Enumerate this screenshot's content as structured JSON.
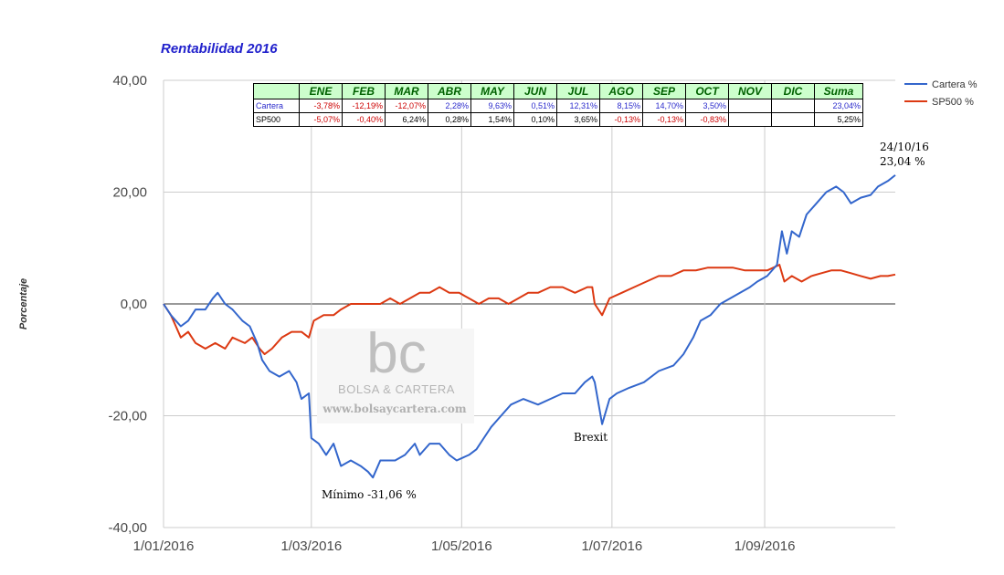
{
  "chart_data": {
    "type": "line",
    "title": "Rentabilidad 2016",
    "ylabel": "Porcentaje",
    "xlabel": "",
    "ylim": [
      -40,
      40
    ],
    "yticks": [
      "40,00",
      "20,00",
      "0,00",
      "-20,00",
      "-40,00"
    ],
    "xticks": [
      "1/01/2016",
      "1/03/2016",
      "1/05/2016",
      "1/07/2016",
      "1/09/2016"
    ],
    "legend_position": "top-right",
    "colors": {
      "cartera": "#3366cc",
      "sp500": "#dc3912"
    },
    "series": [
      {
        "name": "Cartera %",
        "points": [
          [
            "2016-01-01",
            0
          ],
          [
            "2016-01-04",
            -2
          ],
          [
            "2016-01-06",
            -3
          ],
          [
            "2016-01-08",
            -4
          ],
          [
            "2016-01-11",
            -3
          ],
          [
            "2016-01-14",
            -1
          ],
          [
            "2016-01-18",
            -1
          ],
          [
            "2016-01-21",
            1
          ],
          [
            "2016-01-23",
            2
          ],
          [
            "2016-01-26",
            0
          ],
          [
            "2016-01-29",
            -1
          ],
          [
            "2016-02-02",
            -3
          ],
          [
            "2016-02-05",
            -4
          ],
          [
            "2016-02-08",
            -7
          ],
          [
            "2016-02-10",
            -10
          ],
          [
            "2016-02-13",
            -12
          ],
          [
            "2016-02-17",
            -13
          ],
          [
            "2016-02-21",
            -12
          ],
          [
            "2016-02-24",
            -14
          ],
          [
            "2016-02-26",
            -17
          ],
          [
            "2016-02-29",
            -16
          ],
          [
            "2016-03-01",
            -24
          ],
          [
            "2016-03-04",
            -25
          ],
          [
            "2016-03-07",
            -27
          ],
          [
            "2016-03-10",
            -25
          ],
          [
            "2016-03-13",
            -29
          ],
          [
            "2016-03-17",
            -28
          ],
          [
            "2016-03-21",
            -29
          ],
          [
            "2016-03-24",
            -30
          ],
          [
            "2016-03-26",
            -31.06
          ],
          [
            "2016-03-29",
            -28
          ],
          [
            "2016-04-04",
            -28
          ],
          [
            "2016-04-08",
            -27
          ],
          [
            "2016-04-12",
            -25
          ],
          [
            "2016-04-14",
            -27
          ],
          [
            "2016-04-18",
            -25
          ],
          [
            "2016-04-22",
            -25
          ],
          [
            "2016-04-26",
            -27
          ],
          [
            "2016-04-29",
            -28
          ],
          [
            "2016-05-04",
            -27
          ],
          [
            "2016-05-07",
            -26
          ],
          [
            "2016-05-10",
            -24
          ],
          [
            "2016-05-13",
            -22
          ],
          [
            "2016-05-17",
            -20
          ],
          [
            "2016-05-21",
            -18
          ],
          [
            "2016-05-26",
            -17
          ],
          [
            "2016-06-01",
            -18
          ],
          [
            "2016-06-06",
            -17
          ],
          [
            "2016-06-11",
            -16
          ],
          [
            "2016-06-16",
            -16
          ],
          [
            "2016-06-20",
            -14
          ],
          [
            "2016-06-23",
            -13
          ],
          [
            "2016-06-24",
            -14
          ],
          [
            "2016-06-27",
            -21.5
          ],
          [
            "2016-06-30",
            -17
          ],
          [
            "2016-07-03",
            -16
          ],
          [
            "2016-07-08",
            -15
          ],
          [
            "2016-07-14",
            -14
          ],
          [
            "2016-07-20",
            -12
          ],
          [
            "2016-07-26",
            -11
          ],
          [
            "2016-07-30",
            -9
          ],
          [
            "2016-08-03",
            -6
          ],
          [
            "2016-08-06",
            -3
          ],
          [
            "2016-08-10",
            -2
          ],
          [
            "2016-08-14",
            0
          ],
          [
            "2016-08-18",
            1
          ],
          [
            "2016-08-22",
            2
          ],
          [
            "2016-08-26",
            3
          ],
          [
            "2016-08-29",
            4
          ],
          [
            "2016-09-02",
            5
          ],
          [
            "2016-09-06",
            7
          ],
          [
            "2016-09-08",
            13
          ],
          [
            "2016-09-10",
            9
          ],
          [
            "2016-09-12",
            13
          ],
          [
            "2016-09-15",
            12
          ],
          [
            "2016-09-18",
            16
          ],
          [
            "2016-09-22",
            18
          ],
          [
            "2016-09-26",
            20
          ],
          [
            "2016-09-30",
            21
          ],
          [
            "2016-10-03",
            20
          ],
          [
            "2016-10-06",
            18
          ],
          [
            "2016-10-10",
            19
          ],
          [
            "2016-10-14",
            19.5
          ],
          [
            "2016-10-17",
            21
          ],
          [
            "2016-10-21",
            22
          ],
          [
            "2016-10-24",
            23.04
          ]
        ]
      },
      {
        "name": "SP500 %",
        "points": [
          [
            "2016-01-01",
            0
          ],
          [
            "2016-01-04",
            -2
          ],
          [
            "2016-01-06",
            -4
          ],
          [
            "2016-01-08",
            -6
          ],
          [
            "2016-01-11",
            -5
          ],
          [
            "2016-01-14",
            -7
          ],
          [
            "2016-01-18",
            -8
          ],
          [
            "2016-01-22",
            -7
          ],
          [
            "2016-01-26",
            -8
          ],
          [
            "2016-01-29",
            -6
          ],
          [
            "2016-02-03",
            -7
          ],
          [
            "2016-02-06",
            -6
          ],
          [
            "2016-02-09",
            -8
          ],
          [
            "2016-02-11",
            -9
          ],
          [
            "2016-02-14",
            -8
          ],
          [
            "2016-02-18",
            -6
          ],
          [
            "2016-02-22",
            -5
          ],
          [
            "2016-02-26",
            -5
          ],
          [
            "2016-02-29",
            -6
          ],
          [
            "2016-03-02",
            -3
          ],
          [
            "2016-03-06",
            -2
          ],
          [
            "2016-03-10",
            -2
          ],
          [
            "2016-03-13",
            -1
          ],
          [
            "2016-03-17",
            0
          ],
          [
            "2016-03-21",
            0
          ],
          [
            "2016-03-25",
            0
          ],
          [
            "2016-03-29",
            0
          ],
          [
            "2016-04-02",
            1
          ],
          [
            "2016-04-06",
            0
          ],
          [
            "2016-04-10",
            1
          ],
          [
            "2016-04-14",
            2
          ],
          [
            "2016-04-18",
            2
          ],
          [
            "2016-04-22",
            3
          ],
          [
            "2016-04-26",
            2
          ],
          [
            "2016-04-30",
            2
          ],
          [
            "2016-05-04",
            1
          ],
          [
            "2016-05-08",
            0
          ],
          [
            "2016-05-12",
            1
          ],
          [
            "2016-05-16",
            1
          ],
          [
            "2016-05-20",
            0
          ],
          [
            "2016-05-24",
            1
          ],
          [
            "2016-05-28",
            2
          ],
          [
            "2016-06-01",
            2
          ],
          [
            "2016-06-06",
            3
          ],
          [
            "2016-06-11",
            3
          ],
          [
            "2016-06-16",
            2
          ],
          [
            "2016-06-21",
            3
          ],
          [
            "2016-06-23",
            3
          ],
          [
            "2016-06-24",
            0
          ],
          [
            "2016-06-27",
            -2
          ],
          [
            "2016-06-30",
            1
          ],
          [
            "2016-07-05",
            2
          ],
          [
            "2016-07-10",
            3
          ],
          [
            "2016-07-15",
            4
          ],
          [
            "2016-07-20",
            5
          ],
          [
            "2016-07-25",
            5
          ],
          [
            "2016-07-30",
            6
          ],
          [
            "2016-08-04",
            6
          ],
          [
            "2016-08-09",
            6.5
          ],
          [
            "2016-08-14",
            6.5
          ],
          [
            "2016-08-19",
            6.5
          ],
          [
            "2016-08-24",
            6
          ],
          [
            "2016-08-29",
            6
          ],
          [
            "2016-09-02",
            6
          ],
          [
            "2016-09-07",
            7
          ],
          [
            "2016-09-09",
            4
          ],
          [
            "2016-09-12",
            5
          ],
          [
            "2016-09-16",
            4
          ],
          [
            "2016-09-20",
            5
          ],
          [
            "2016-09-24",
            5.5
          ],
          [
            "2016-09-28",
            6
          ],
          [
            "2016-10-02",
            6
          ],
          [
            "2016-10-06",
            5.5
          ],
          [
            "2016-10-10",
            5
          ],
          [
            "2016-10-14",
            4.5
          ],
          [
            "2016-10-18",
            5
          ],
          [
            "2016-10-21",
            5
          ],
          [
            "2016-10-24",
            5.25
          ]
        ]
      }
    ],
    "annotations": [
      {
        "text": "Mínimo -31,06 %",
        "x": "2016-03-26",
        "y": -31.06
      },
      {
        "text": "Brexit",
        "x": "2016-06-27",
        "y": -21.5
      },
      {
        "text": "24/10/16",
        "x": "2016-10-24",
        "y": 23.04
      },
      {
        "text": "23,04 %",
        "x": "2016-10-24",
        "y": 23.04
      }
    ],
    "table": {
      "corner": "",
      "headers": [
        "ENE",
        "FEB",
        "MAR",
        "ABR",
        "MAY",
        "JUN",
        "JUL",
        "AGO",
        "SEP",
        "OCT",
        "NOV",
        "DIC",
        "Suma"
      ],
      "rows": [
        {
          "label": "Cartera",
          "values": [
            "-3,78%",
            "-12,19%",
            "-12,07%",
            "2,28%",
            "9,63%",
            "0,51%",
            "12,31%",
            "8,15%",
            "14,70%",
            "3,50%",
            "",
            "",
            "23,04%"
          ]
        },
        {
          "label": "SP500",
          "values": [
            "-5,07%",
            "-0,40%",
            "6,24%",
            "0,28%",
            "1,54%",
            "0,10%",
            "3,65%",
            "-0,13%",
            "-0,13%",
            "-0,83%",
            "",
            "",
            "5,25%"
          ]
        }
      ]
    }
  },
  "watermark": {
    "logo_letters": "bc",
    "name": "BOLSA & CARTERA",
    "url": "www.bolsaycartera.com"
  }
}
